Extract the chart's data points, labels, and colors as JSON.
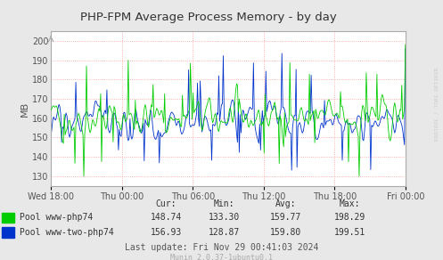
{
  "title": "PHP-FPM Average Process Memory - by day",
  "ylabel": "MB",
  "background_color": "#e8e8e8",
  "plot_bg_color": "#ffffff",
  "grid_color": "#ff9999",
  "x_ticks_labels": [
    "Wed 18:00",
    "Thu 00:00",
    "Thu 06:00",
    "Thu 12:00",
    "Thu 18:00",
    "Fri 00:00"
  ],
  "y_ticks": [
    130,
    140,
    150,
    160,
    170,
    180,
    190,
    200
  ],
  "ylim": [
    125,
    205
  ],
  "legend": [
    {
      "label": "Pool www-php74",
      "color": "#00cc00"
    },
    {
      "label": "Pool www-two-php74",
      "color": "#0033cc"
    }
  ],
  "stats": {
    "cur": [
      "148.74",
      "156.93"
    ],
    "min": [
      "133.30",
      "128.87"
    ],
    "avg": [
      "159.77",
      "159.80"
    ],
    "max": [
      "198.29",
      "199.51"
    ]
  },
  "last_update": "Last update: Fri Nov 29 00:41:03 2024",
  "munin_version": "Munin 2.0.37-1ubuntu0.1",
  "rrdtool_label": "RRDTOOL / TOBI OETIKER",
  "n_points": 400,
  "seed": 42
}
